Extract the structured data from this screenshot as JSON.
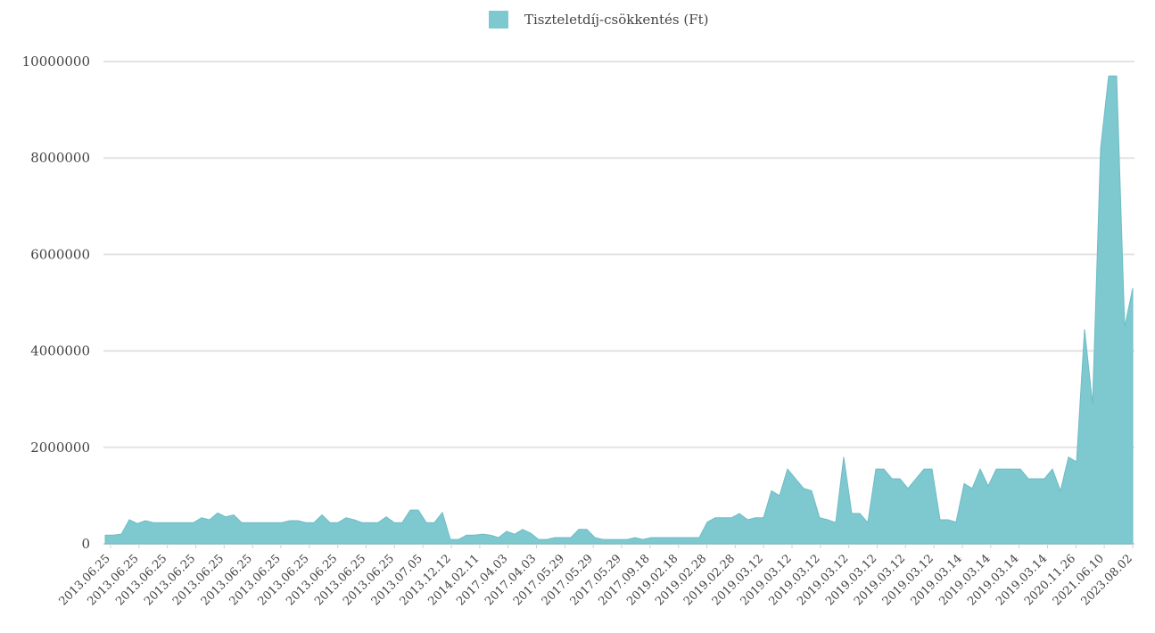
{
  "chart_data": {
    "type": "area",
    "legend": {
      "label": "Tiszteletdíj-csökkentés (Ft)",
      "color": "#7ec8d0",
      "position": "top-center"
    },
    "series_color": "#7ec8d0",
    "grid": true,
    "ylim": [
      0,
      10000000
    ],
    "y_ticks": [
      0,
      2000000,
      4000000,
      6000000,
      8000000,
      10000000
    ],
    "y_tick_labels": [
      "0",
      "2000000",
      "4000000",
      "6000000",
      "8000000",
      "10000000"
    ],
    "x_tick_labels": [
      "2013.06.25",
      "2013.06.25",
      "2013.06.25",
      "2013.06.25",
      "2013.06.25",
      "2013.06.25",
      "2013.06.25",
      "2013.06.25",
      "2013.06.25",
      "2013.06.25",
      "2013.06.25",
      "2013.07.05",
      "2013.12.12",
      "2014.02.11",
      "2017.04.03",
      "2017.04.03",
      "2017.05.29",
      "2017.05.29",
      "2017.05.29",
      "2017.09.18",
      "2019.02.18",
      "2019.02.28",
      "2019.02.28",
      "2019.03.12",
      "2019.03.12",
      "2019.03.12",
      "2019.03.12",
      "2019.03.12",
      "2019.03.12",
      "2019.03.12",
      "2019.03.14",
      "2019.03.14",
      "2019.03.14",
      "2019.03.14",
      "2020.11.26",
      "2021.06.10",
      "2023.08.02"
    ],
    "values": [
      180000,
      180000,
      200000,
      500000,
      420000,
      480000,
      440000,
      440000,
      440000,
      440000,
      440000,
      440000,
      540000,
      500000,
      640000,
      560000,
      600000,
      440000,
      440000,
      440000,
      440000,
      440000,
      440000,
      480000,
      480000,
      440000,
      440000,
      600000,
      440000,
      440000,
      540000,
      500000,
      440000,
      440000,
      440000,
      560000,
      440000,
      440000,
      700000,
      700000,
      440000,
      440000,
      650000,
      90000,
      90000,
      180000,
      180000,
      200000,
      180000,
      130000,
      260000,
      200000,
      300000,
      220000,
      90000,
      90000,
      130000,
      130000,
      130000,
      300000,
      300000,
      130000,
      90000,
      90000,
      90000,
      90000,
      130000,
      90000,
      130000,
      130000,
      130000,
      130000,
      130000,
      130000,
      130000,
      450000,
      540000,
      540000,
      540000,
      630000,
      500000,
      540000,
      540000,
      1100000,
      1000000,
      1550000,
      1350000,
      1150000,
      1100000,
      540000,
      500000,
      440000,
      1800000,
      630000,
      630000,
      440000,
      1550000,
      1550000,
      1350000,
      1350000,
      1150000,
      1350000,
      1550000,
      1550000,
      500000,
      500000,
      450000,
      1250000,
      1150000,
      1550000,
      1200000,
      1550000,
      1550000,
      1550000,
      1550000,
      1350000,
      1350000,
      1350000,
      1550000,
      1100000,
      1800000,
      1700000,
      4450000,
      2900000,
      8200000,
      9700000,
      9700000,
      4500000,
      5300000
    ]
  }
}
